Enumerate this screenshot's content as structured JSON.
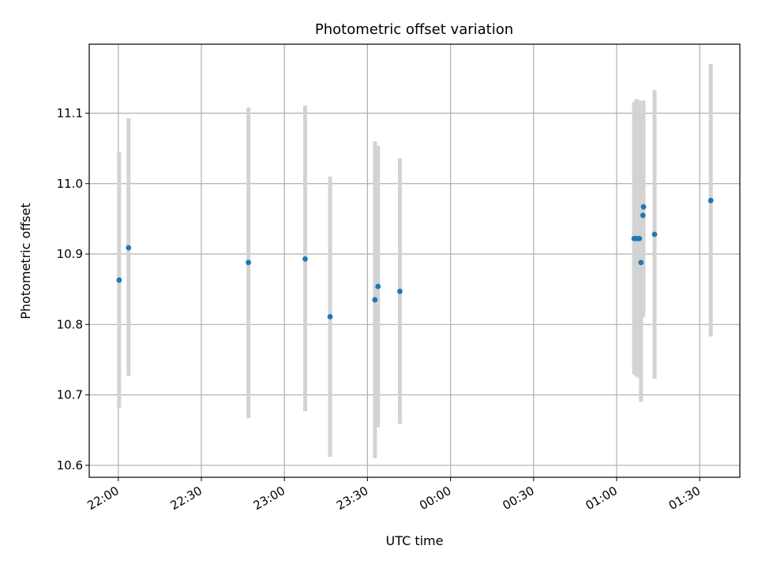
{
  "chart_data": {
    "type": "scatter",
    "title": "Photometric offset variation",
    "xlabel": "UTC time",
    "ylabel": "Photometric offset",
    "x_tick_labels": [
      "22:00",
      "22:30",
      "23:00",
      "23:30",
      "00:00",
      "00:30",
      "01:00",
      "01:30"
    ],
    "x_ticks_min": [
      0,
      30,
      60,
      90,
      120,
      150,
      180,
      210
    ],
    "x_axis_start": "22:00",
    "xlim_min": [
      -10.5,
      224.5
    ],
    "y_ticks": [
      10.6,
      10.7,
      10.8,
      10.9,
      11.0,
      11.1
    ],
    "y_tick_labels": [
      "10.6",
      "10.7",
      "10.8",
      "10.9",
      "11.0",
      "11.1"
    ],
    "ylim": [
      10.583,
      11.198
    ],
    "grid": true,
    "marker_color": "#1f77b4",
    "errorbar_color": "#d3d3d3",
    "points": [
      {
        "t": 0.3,
        "y": 10.863,
        "lo": 10.682,
        "hi": 11.045
      },
      {
        "t": 3.7,
        "y": 10.909,
        "lo": 10.727,
        "hi": 11.093
      },
      {
        "t": 47.0,
        "y": 10.888,
        "lo": 10.667,
        "hi": 11.108
      },
      {
        "t": 67.5,
        "y": 10.893,
        "lo": 10.677,
        "hi": 11.111
      },
      {
        "t": 76.5,
        "y": 10.811,
        "lo": 10.612,
        "hi": 11.01
      },
      {
        "t": 92.7,
        "y": 10.835,
        "lo": 10.61,
        "hi": 11.06
      },
      {
        "t": 93.8,
        "y": 10.854,
        "lo": 10.654,
        "hi": 11.054
      },
      {
        "t": 101.7,
        "y": 10.847,
        "lo": 10.659,
        "hi": 11.036
      },
      {
        "t": 186.3,
        "y": 10.922,
        "lo": 10.729,
        "hi": 11.116
      },
      {
        "t": 187.2,
        "y": 10.922,
        "lo": 10.726,
        "hi": 11.12
      },
      {
        "t": 188.2,
        "y": 10.922,
        "lo": 10.724,
        "hi": 11.118
      },
      {
        "t": 188.8,
        "y": 10.888,
        "lo": 10.69,
        "hi": 11.087
      },
      {
        "t": 189.5,
        "y": 10.955,
        "lo": 10.81,
        "hi": 11.1
      },
      {
        "t": 189.7,
        "y": 10.967,
        "lo": 10.815,
        "hi": 11.118
      },
      {
        "t": 193.7,
        "y": 10.928,
        "lo": 10.723,
        "hi": 11.133
      },
      {
        "t": 214.0,
        "y": 10.976,
        "lo": 10.783,
        "hi": 11.17
      }
    ]
  }
}
